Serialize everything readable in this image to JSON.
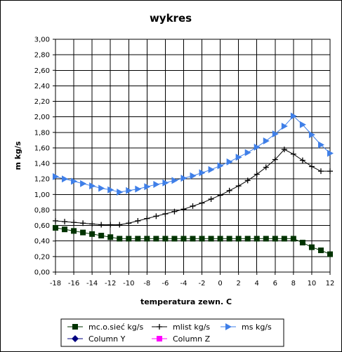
{
  "chart_data": {
    "type": "line",
    "title": "wykres",
    "xlabel": "temperatura zewn. C",
    "ylabel": "m kg/s",
    "xlim": [
      -18,
      12
    ],
    "ylim": [
      0,
      3
    ],
    "y_ticks": [
      "0,00",
      "0,20",
      "0,40",
      "0,60",
      "0,80",
      "1,00",
      "1,20",
      "1,40",
      "1,60",
      "1,80",
      "2,00",
      "2,20",
      "2,40",
      "2,60",
      "2,80",
      "3,00"
    ],
    "x_ticks": [
      "-18",
      "-16",
      "-14",
      "-12",
      "-10",
      "-8",
      "-6",
      "-4",
      "-2",
      "0",
      "2",
      "4",
      "6",
      "8",
      "10",
      "12"
    ],
    "grid": true,
    "legend_position": "bottom",
    "series": [
      {
        "name": "mc.o.sieć kg/s",
        "color": "#003300",
        "marker": "square",
        "x": [
          -18,
          -17,
          -16,
          -15,
          -14,
          -13,
          -12,
          -11,
          -10,
          -9,
          -8,
          -7,
          -6,
          -5,
          -4,
          -3,
          -2,
          -1,
          0,
          1,
          2,
          3,
          4,
          5,
          6,
          7,
          8,
          9,
          10,
          11,
          12
        ],
        "y": [
          0.57,
          0.55,
          0.53,
          0.51,
          0.49,
          0.47,
          0.45,
          0.43,
          0.43,
          0.43,
          0.43,
          0.43,
          0.43,
          0.43,
          0.43,
          0.43,
          0.43,
          0.43,
          0.43,
          0.43,
          0.43,
          0.43,
          0.43,
          0.43,
          0.43,
          0.43,
          0.43,
          0.38,
          0.32,
          0.28,
          0.23
        ]
      },
      {
        "name": "mlist kg/s",
        "color": "#000000",
        "marker": "plus",
        "x": [
          -18,
          -17,
          -16,
          -15,
          -14,
          -13,
          -12,
          -11,
          -10,
          -9,
          -8,
          -7,
          -6,
          -5,
          -4,
          -3,
          -2,
          -1,
          0,
          1,
          2,
          3,
          4,
          5,
          6,
          7,
          8,
          9,
          10,
          11,
          12
        ],
        "y": [
          0.66,
          0.65,
          0.64,
          0.63,
          0.62,
          0.61,
          0.61,
          0.61,
          0.63,
          0.66,
          0.69,
          0.72,
          0.75,
          0.78,
          0.81,
          0.85,
          0.89,
          0.94,
          0.99,
          1.05,
          1.11,
          1.18,
          1.26,
          1.35,
          1.45,
          1.58,
          1.52,
          1.44,
          1.36,
          1.3,
          1.3
        ]
      },
      {
        "name": "ms kg/s",
        "color": "#3f7fe8",
        "marker": "triangle-right",
        "x": [
          -18,
          -17,
          -16,
          -15,
          -14,
          -13,
          -12,
          -11,
          -10,
          -9,
          -8,
          -7,
          -6,
          -5,
          -4,
          -3,
          -2,
          -1,
          0,
          1,
          2,
          3,
          4,
          5,
          6,
          7,
          8,
          9,
          10,
          11,
          12
        ],
        "y": [
          1.23,
          1.2,
          1.17,
          1.14,
          1.11,
          1.08,
          1.06,
          1.03,
          1.05,
          1.07,
          1.1,
          1.13,
          1.15,
          1.18,
          1.21,
          1.24,
          1.28,
          1.32,
          1.37,
          1.42,
          1.48,
          1.54,
          1.61,
          1.69,
          1.78,
          1.88,
          2.01,
          1.9,
          1.77,
          1.64,
          1.53
        ]
      },
      {
        "name": "Column Y",
        "color": "#000080",
        "marker": "diamond",
        "x": [],
        "y": []
      },
      {
        "name": "Column Z",
        "color": "#ff00ff",
        "marker": "square",
        "x": [],
        "y": []
      }
    ]
  }
}
